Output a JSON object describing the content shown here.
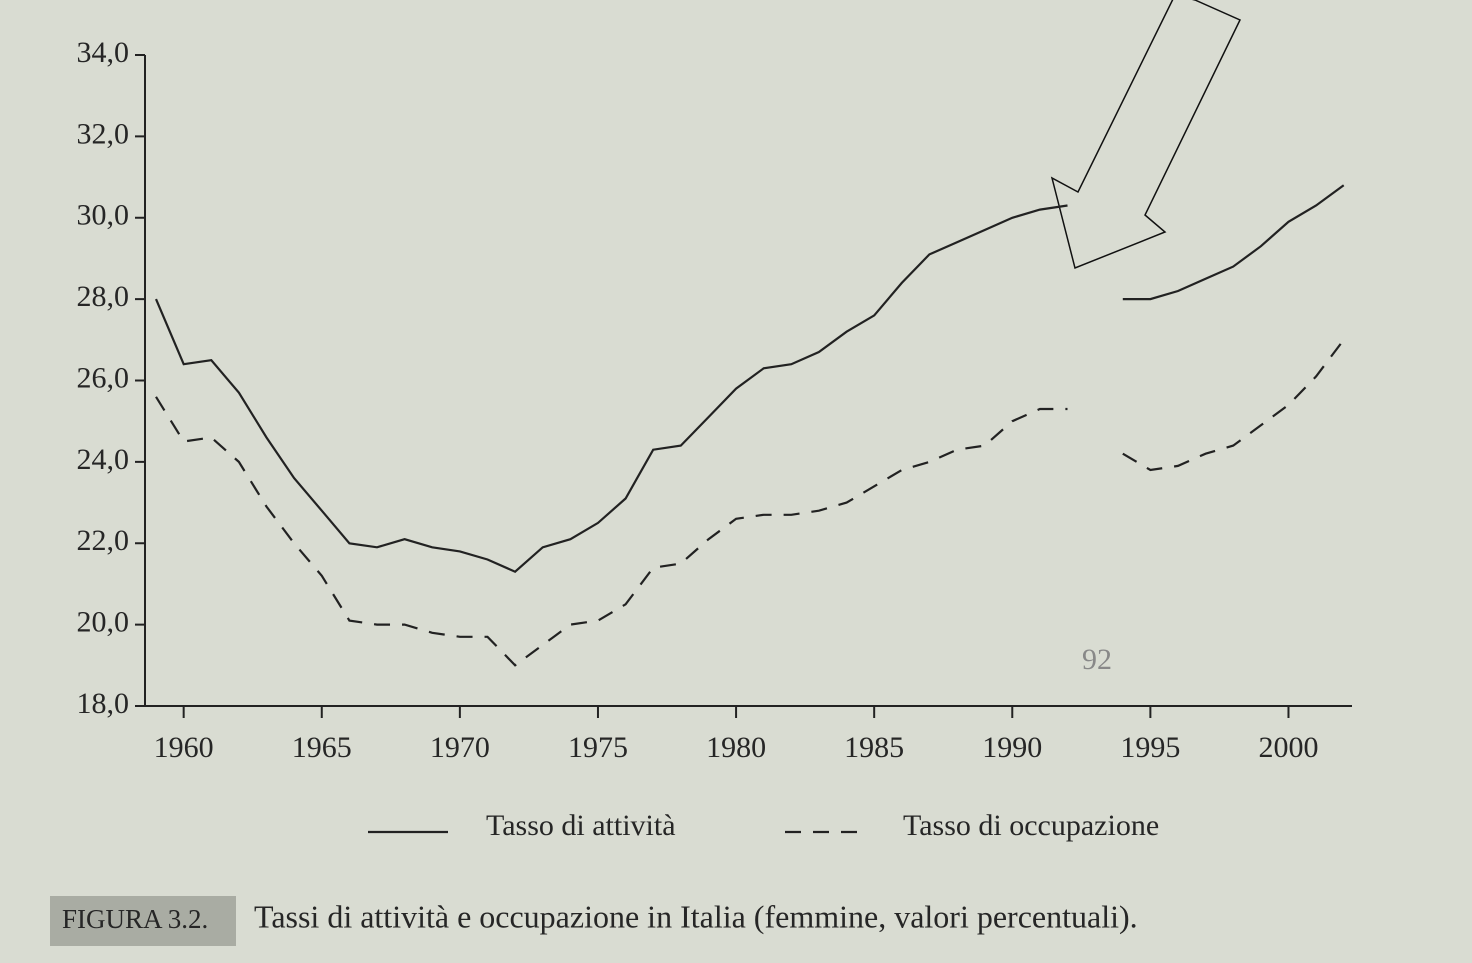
{
  "chart_data": {
    "type": "line",
    "caption_label": "FIGURA 3.2.",
    "title": "Tassi di attività e occupazione in Italia (femmine, valori percentuali).",
    "annotation": "92",
    "x": [
      1959,
      1960,
      1961,
      1962,
      1963,
      1964,
      1965,
      1966,
      1967,
      1968,
      1969,
      1970,
      1971,
      1972,
      1973,
      1974,
      1975,
      1976,
      1977,
      1978,
      1979,
      1980,
      1981,
      1982,
      1983,
      1984,
      1985,
      1986,
      1987,
      1988,
      1989,
      1990,
      1991,
      1992,
      1993,
      1994,
      1995,
      1996,
      1997,
      1998,
      1999,
      2000,
      2001,
      2002
    ],
    "series": [
      {
        "name": "Tasso di attività",
        "color": "#222222",
        "dash": "solid",
        "values": [
          28.0,
          26.4,
          26.5,
          25.7,
          24.6,
          23.6,
          22.8,
          22.0,
          21.9,
          22.1,
          21.9,
          21.8,
          21.6,
          21.3,
          21.9,
          22.1,
          22.5,
          23.1,
          24.3,
          24.4,
          25.1,
          25.8,
          26.3,
          26.4,
          26.7,
          27.2,
          27.6,
          28.4,
          29.1,
          29.4,
          29.7,
          30.0,
          30.2,
          30.3,
          null,
          28.0,
          28.0,
          28.2,
          28.5,
          28.8,
          29.3,
          29.9,
          30.3,
          30.8
        ]
      },
      {
        "name": "Tasso di occupazione",
        "color": "#222222",
        "dash": "dashed",
        "values": [
          25.6,
          24.5,
          24.6,
          24.0,
          22.9,
          22.0,
          21.2,
          20.1,
          20.0,
          20.0,
          19.8,
          19.7,
          19.7,
          19.0,
          19.5,
          20.0,
          20.1,
          20.5,
          21.4,
          21.5,
          22.1,
          22.6,
          22.7,
          22.7,
          22.8,
          23.0,
          23.4,
          23.8,
          24.0,
          24.3,
          24.4,
          25.0,
          25.3,
          25.3,
          null,
          24.2,
          23.8,
          23.9,
          24.2,
          24.4,
          24.9,
          25.4,
          26.1,
          27.0
        ]
      }
    ],
    "xlim": [
      1958.6,
      2002.3
    ],
    "xticks": [
      1960,
      1965,
      1970,
      1975,
      1980,
      1985,
      1990,
      1995,
      2000
    ],
    "ylim": [
      18,
      34
    ],
    "yticks": [
      {
        "value": 18,
        "label": "18,0"
      },
      {
        "value": 20,
        "label": "20,0"
      },
      {
        "value": 22,
        "label": "22,0"
      },
      {
        "value": 24,
        "label": "24,0"
      },
      {
        "value": 26,
        "label": "26,0"
      },
      {
        "value": 28,
        "label": "28,0"
      },
      {
        "value": 30,
        "label": "30,0"
      },
      {
        "value": 32,
        "label": "32,0"
      },
      {
        "value": 34,
        "label": "34,0"
      }
    ],
    "grid": false
  }
}
